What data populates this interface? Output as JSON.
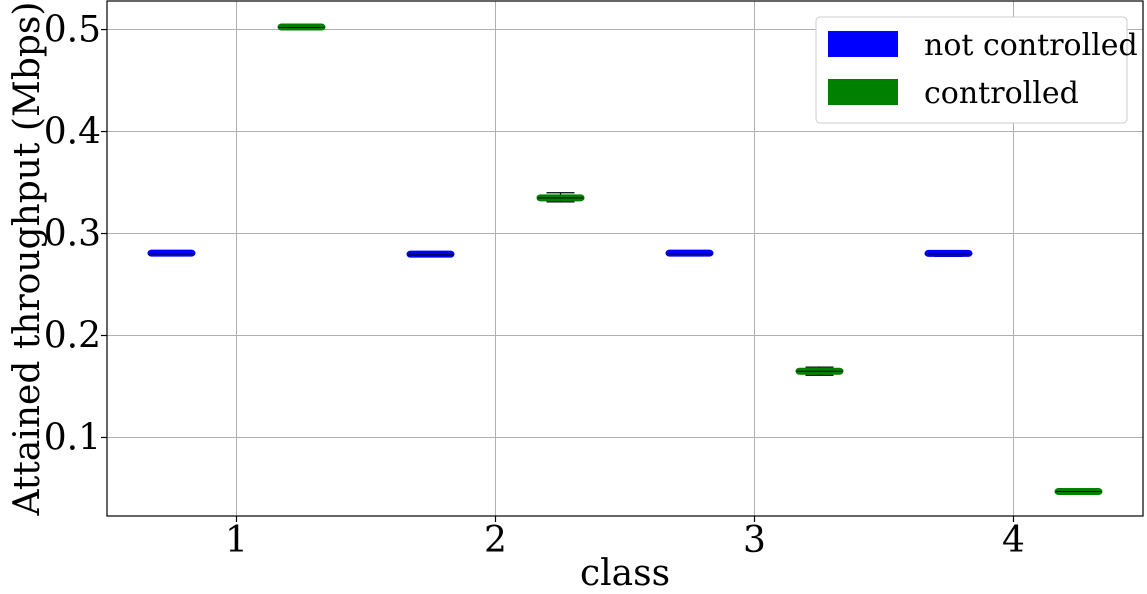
{
  "chart_data": {
    "type": "box",
    "categories": [
      "1",
      "2",
      "3",
      "4"
    ],
    "xlabel": "class",
    "ylabel": "Attained throughput (Mbps)",
    "ylim": [
      0.023,
      0.528
    ],
    "yticks": [
      0.1,
      0.2,
      0.3,
      0.4,
      0.5
    ],
    "ytick_labels": [
      "0.1",
      "0.2",
      "0.3",
      "0.4",
      "0.5"
    ],
    "grid": true,
    "legend_position": "top-right",
    "series": [
      {
        "name": "not controlled",
        "color": "#0000ff",
        "boxes": [
          {
            "min": 0.2785,
            "q1": 0.2795,
            "median": 0.28,
            "q3": 0.282,
            "max": 0.2825
          },
          {
            "min": 0.2775,
            "q1": 0.2785,
            "median": 0.279,
            "q3": 0.281,
            "max": 0.2815
          },
          {
            "min": 0.2785,
            "q1": 0.2795,
            "median": 0.28,
            "q3": 0.282,
            "max": 0.2825
          },
          {
            "min": 0.2775,
            "q1": 0.279,
            "median": 0.28,
            "q3": 0.282,
            "max": 0.2825
          }
        ]
      },
      {
        "name": "controlled",
        "color": "#008000",
        "boxes": [
          {
            "min": 0.5,
            "q1": 0.501,
            "median": 0.502,
            "q3": 0.504,
            "max": 0.505
          },
          {
            "min": 0.331,
            "q1": 0.333,
            "median": 0.335,
            "q3": 0.337,
            "max": 0.34
          },
          {
            "min": 0.161,
            "q1": 0.163,
            "median": 0.165,
            "q3": 0.167,
            "max": 0.169
          },
          {
            "min": 0.0455,
            "q1": 0.046,
            "median": 0.047,
            "q3": 0.048,
            "max": 0.0485
          }
        ]
      }
    ]
  }
}
